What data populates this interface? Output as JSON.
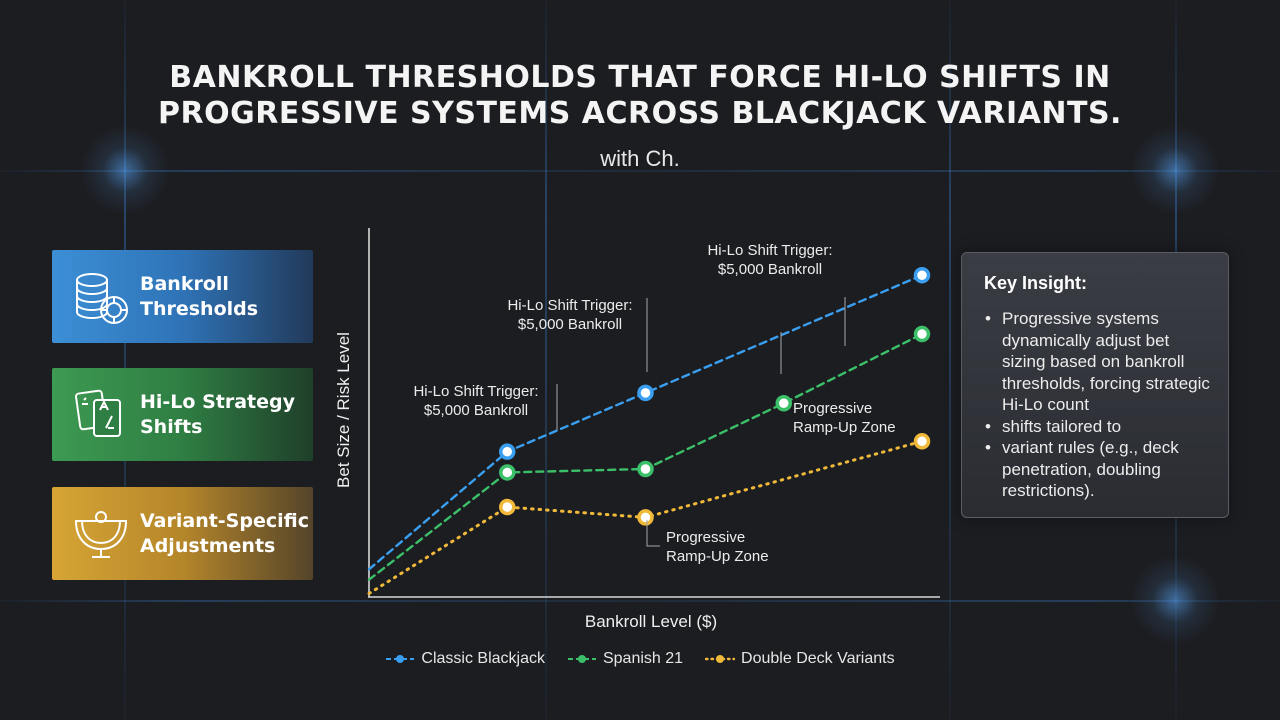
{
  "title_lines": [
    "BANKROLL THRESHOLDS THAT FORCE HI-LO SHIFTS IN",
    "PROGRESSIVE SYSTEMS ACROSS BLACKJACK VARIANTS."
  ],
  "subtitle": "with Ch.",
  "cards": [
    {
      "label": "Bankroll\nThresholds",
      "icon": "poker-chips-icon",
      "color": "#3c8fd6"
    },
    {
      "label": "Hi-Lo Strategy\nShifts",
      "icon": "playing-cards-icon",
      "color": "#3d9a52"
    },
    {
      "label": "Variant-Specific\nAdjustments",
      "icon": "blackjack-table-icon",
      "color": "#d6a535"
    }
  ],
  "chart_data": {
    "type": "line",
    "xlabel": "Bankroll Level ($)",
    "ylabel": "Bet Size / Risk Level",
    "x": [
      0,
      1,
      2,
      3,
      4
    ],
    "xlim": [
      0,
      4.3
    ],
    "ylim": [
      0,
      10
    ],
    "grid": false,
    "legend_position": "bottom",
    "series": [
      {
        "name": "Classic Blackjack",
        "color": "#3a9ff0",
        "style": "dashed",
        "values": [
          0.8,
          4.2,
          5.9,
          null,
          9.3
        ]
      },
      {
        "name": "Spanish 21",
        "color": "#3bc069",
        "style": "dashed",
        "values": [
          0.5,
          3.6,
          3.7,
          5.6,
          7.6
        ]
      },
      {
        "name": "Double Deck Variants",
        "color": "#f0b93a",
        "style": "dotted",
        "values": [
          0.1,
          2.6,
          2.3,
          null,
          4.5
        ]
      }
    ],
    "annotations": [
      {
        "text": "Hi-Lo Shift Trigger:\n$5,000 Bankroll",
        "series": 0,
        "point": 1
      },
      {
        "text": "Hi-Lo Shift Trigger:\n$5,000 Bankroll",
        "series": 0,
        "point": 2
      },
      {
        "text": "Hi-Lo Shift Trigger:\n$5,000 Bankroll",
        "series": 0,
        "point": 4
      },
      {
        "text": "Progressive\nRamp-Up Zone",
        "series": 2,
        "point": 2
      },
      {
        "text": "Progressive\nRamp-Up Zone",
        "series": 1,
        "point": 3
      }
    ]
  },
  "insight": {
    "heading": "Key Insight:",
    "bullets": [
      "Progressive systems dynamically adjust bet sizing based on bankroll thresholds, forcing strategic Hi-Lo count",
      "shifts tailored to",
      "variant rules (e.g., deck penetration, doubling restrictions)."
    ]
  }
}
